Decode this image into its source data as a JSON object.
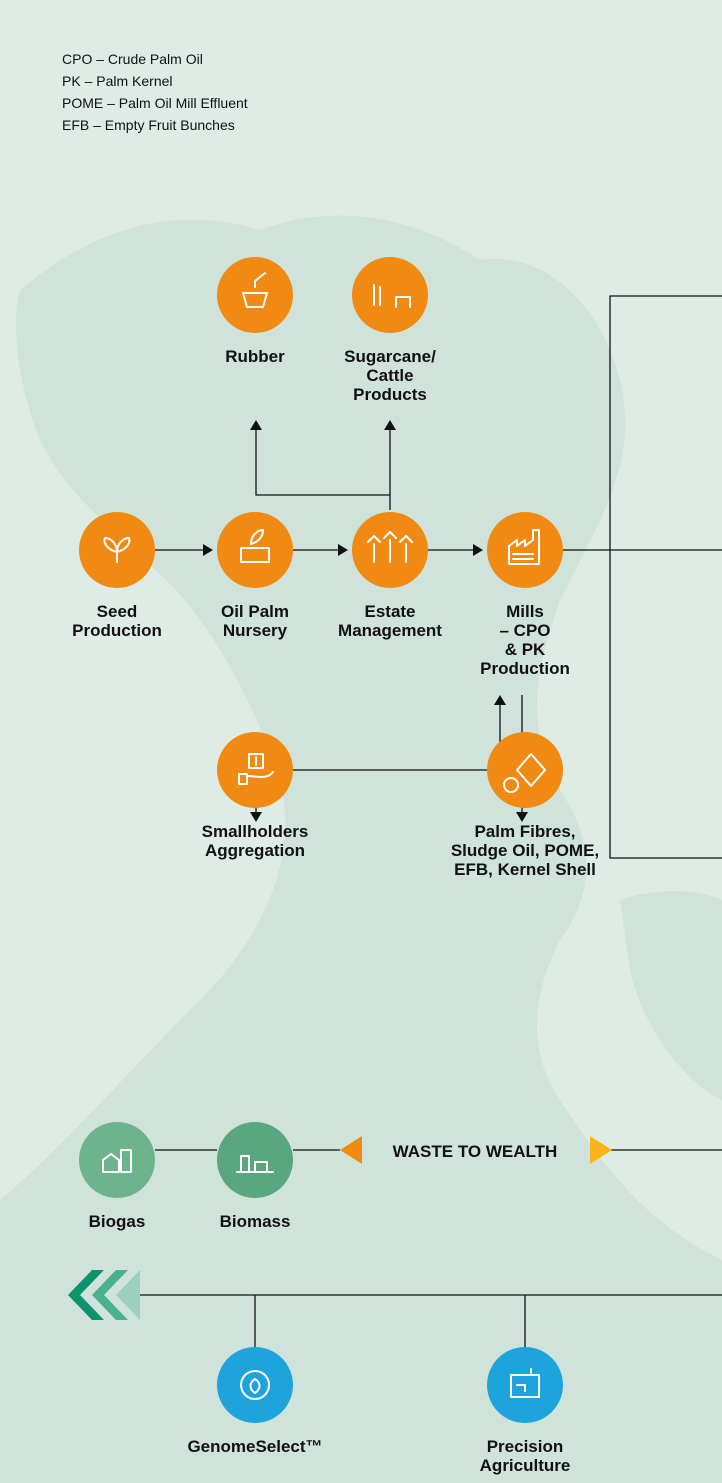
{
  "legend": [
    "CPO – Crude Palm Oil",
    "PK – Palm Kernel",
    "POME – Palm Oil Mill Effluent",
    "EFB – Empty Fruit Bunches"
  ],
  "nodes": [
    {
      "label": [
        "Rubber"
      ]
    },
    {
      "label": [
        "Sugarcane/",
        "Cattle",
        "Products"
      ]
    },
    {
      "label": [
        "Seed",
        "Production"
      ]
    },
    {
      "label": [
        "Oil Palm",
        "Nursery"
      ]
    },
    {
      "label": [
        "Estate",
        "Management"
      ]
    },
    {
      "label": [
        "Mills",
        "– CPO",
        "& PK",
        "Production"
      ]
    },
    {
      "label": [
        "Smallholders",
        "Aggregation"
      ]
    },
    {
      "label": [
        "Palm Fibres,",
        "Sludge Oil, POME,",
        "EFB, Kernel Shell"
      ]
    },
    {
      "label": [
        "Biogas"
      ]
    },
    {
      "label": [
        "Biomass"
      ]
    },
    {
      "label": [
        "GenomeSelect™"
      ]
    },
    {
      "label": [
        "Precision",
        "Agriculture"
      ]
    }
  ],
  "banner": "WASTE TO WEALTH"
}
